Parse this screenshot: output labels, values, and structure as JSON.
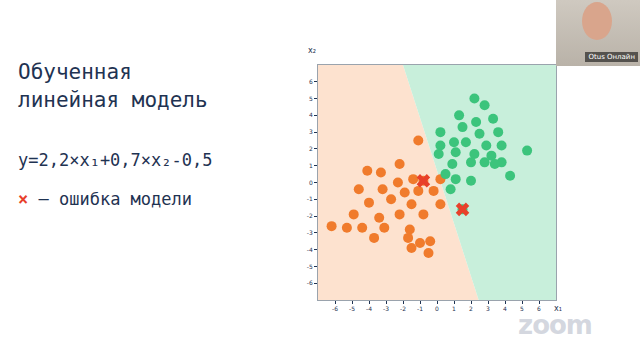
{
  "slide": {
    "title": [
      "Обученная",
      "линейная модель"
    ],
    "equation": "y=2,2×x₁+0,7×x₂-0,5",
    "note": {
      "symbol": "×",
      "text": "— ошибка модели"
    },
    "participant": "Otus Онлайн",
    "watermark": "zoom"
  },
  "chart_data": {
    "type": "scatter",
    "xlabel": "x₁",
    "ylabel": "x₂",
    "xlim": [
      -7,
      7
    ],
    "ylim": [
      -7,
      7
    ],
    "xticks": [
      -6,
      -5,
      -4,
      -3,
      -2,
      -1,
      0,
      1,
      2,
      3,
      4,
      5,
      6
    ],
    "yticks": [
      -6,
      -5,
      -4,
      -3,
      -2,
      -1,
      0,
      1,
      2,
      3,
      4,
      5,
      6
    ],
    "grid": false,
    "tick_labels": true,
    "boundary": {
      "x": [
        -2.0,
        2.45
      ],
      "y": [
        7,
        -7
      ],
      "colors": [
        "#fde2cf",
        "#c8efdb"
      ]
    },
    "series": [
      {
        "color": "#f07b2c",
        "marker": "circle",
        "x": [
          -1.1,
          -2.2,
          -3.3,
          -4.1,
          -1.4,
          -2.3,
          -0.8,
          0.2,
          -4.6,
          -3.2,
          -1.9,
          -1.1,
          -0.2,
          -4.0,
          -2.7,
          -1.5,
          0.2,
          -4.9,
          -3.4,
          -2.2,
          -0.8,
          -4.4,
          -3.1,
          -1.6,
          -5.3,
          -6.2,
          -3.7,
          -1.7,
          -1.0,
          -0.4,
          -1.5,
          -0.5
        ],
        "values": [
          2.5,
          1.1,
          0.6,
          0.7,
          0.2,
          0.0,
          0.1,
          0.2,
          -0.4,
          -0.4,
          -0.6,
          -0.5,
          -0.5,
          -1.2,
          -1.0,
          -1.3,
          -1.3,
          -1.9,
          -2.1,
          -1.9,
          -1.9,
          -2.7,
          -2.7,
          -2.8,
          -2.7,
          -2.6,
          -3.3,
          -3.3,
          -3.6,
          -3.5,
          -3.9,
          -4.2
        ]
      },
      {
        "color": "#3cc47c",
        "marker": "circle",
        "x": [
          2.2,
          2.8,
          1.3,
          3.3,
          2.3,
          1.5,
          0.2,
          3.6,
          2.5,
          1.0,
          1.7,
          0.2,
          2.9,
          3.8,
          5.3,
          1.1,
          0.1,
          2.2,
          3.2,
          2.0,
          2.8,
          3.8,
          0.9,
          0.5,
          3.4,
          4.3,
          1.1,
          2.0,
          0.8,
          1.5
        ],
        "values": [
          5.0,
          4.6,
          4.0,
          3.8,
          3.6,
          3.3,
          3.0,
          3.0,
          2.9,
          2.4,
          2.4,
          2.2,
          2.2,
          2.2,
          1.9,
          1.8,
          1.7,
          1.7,
          1.6,
          1.2,
          1.2,
          1.2,
          1.1,
          0.5,
          1.1,
          0.4,
          0.2,
          0.1,
          -0.4,
          -1.6
        ]
      },
      {
        "color": "#e8402a",
        "marker": "x",
        "x": [
          -0.8,
          1.5
        ],
        "values": [
          0.1,
          -1.6
        ]
      }
    ]
  }
}
